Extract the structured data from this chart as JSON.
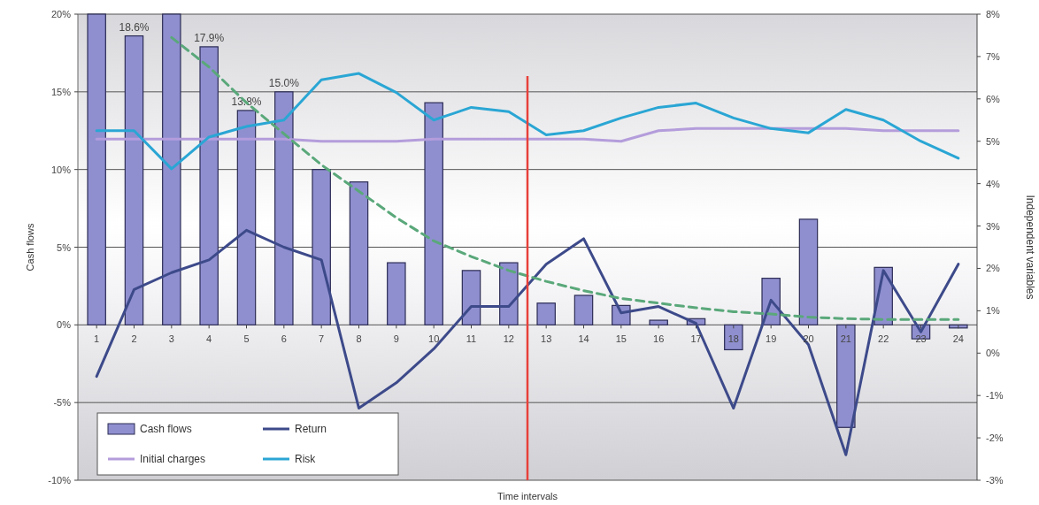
{
  "chart_data": {
    "type": "bar",
    "xlabel": "Time intervals",
    "ylabel": "Cash flows",
    "y2label": "Independent variables",
    "x": [
      1,
      2,
      3,
      4,
      5,
      6,
      7,
      8,
      9,
      10,
      11,
      12,
      13,
      14,
      15,
      16,
      17,
      18,
      19,
      20,
      21,
      22,
      23,
      24
    ],
    "xlim": [
      0.5,
      24.5
    ],
    "xticks": [
      1,
      2,
      3,
      4,
      5,
      6,
      7,
      8,
      9,
      10,
      11,
      12,
      13,
      14,
      15,
      16,
      17,
      18,
      19,
      20,
      21,
      22,
      23,
      24
    ],
    "ylim": [
      -10,
      20
    ],
    "yticks": [
      {
        "value": -10,
        "label": "-10%"
      },
      {
        "value": -5,
        "label": "-5%"
      },
      {
        "value": 0,
        "label": "0%"
      },
      {
        "value": 5,
        "label": "5%"
      },
      {
        "value": 10,
        "label": "10%"
      },
      {
        "value": 15,
        "label": "15%"
      },
      {
        "value": 20,
        "label": "20%"
      }
    ],
    "y2lim": [
      -3,
      8
    ],
    "y2ticks": [
      {
        "value": -3,
        "label": "-3%"
      },
      {
        "value": -2,
        "label": "-2%"
      },
      {
        "value": -1,
        "label": "-1%"
      },
      {
        "value": 0,
        "label": "0%"
      },
      {
        "value": 1,
        "label": "1%"
      },
      {
        "value": 2,
        "label": "2%"
      },
      {
        "value": 3,
        "label": "3%"
      },
      {
        "value": 4,
        "label": "4%"
      },
      {
        "value": 5,
        "label": "5%"
      },
      {
        "value": 6,
        "label": "6%"
      },
      {
        "value": 7,
        "label": "7%"
      },
      {
        "value": 8,
        "label": "8%"
      }
    ],
    "grid": "y",
    "legend": "bottom left",
    "series": [
      {
        "name": "Cash flows",
        "color": "#8f8fd0",
        "values": [
          20,
          18.6,
          20,
          17.9,
          13.8,
          15.0,
          10.0,
          9.2,
          4.0,
          14.3,
          3.5,
          4.0,
          1.4,
          1.9,
          1.25,
          0.3,
          0.4,
          -1.6,
          3.0,
          6.8,
          -6.6,
          3.7,
          -0.9,
          -0.2
        ],
        "value_labels": [
          null,
          "18.6%",
          null,
          "17.9%",
          "13.8%",
          "15.0%",
          null,
          null,
          null,
          null,
          null,
          null,
          null,
          null,
          null,
          null,
          null,
          null,
          null,
          null,
          null,
          null,
          null,
          null
        ]
      },
      {
        "name": "Return",
        "type": "line",
        "axis": "y2",
        "color": "#3d4a8a",
        "values": [
          -0.55,
          1.5,
          1.9,
          2.2,
          2.9,
          2.5,
          2.2,
          -1.3,
          -0.7,
          0.1,
          1.1,
          1.1,
          2.1,
          2.7,
          0.95,
          1.1,
          0.7,
          -1.3,
          1.25,
          0.2,
          -2.4,
          1.95,
          0.5,
          2.1
        ]
      },
      {
        "name": "Initial charges",
        "type": "line",
        "axis": "y2",
        "color": "#b49ddb",
        "values": [
          5.05,
          5.05,
          5.05,
          5.05,
          5.05,
          5.05,
          5.0,
          5.0,
          5.0,
          5.05,
          5.05,
          5.05,
          5.05,
          5.05,
          5.0,
          5.25,
          5.3,
          5.3,
          5.3,
          5.3,
          5.3,
          5.25,
          5.25,
          5.25
        ]
      },
      {
        "name": "Risk",
        "type": "line",
        "axis": "y2",
        "color": "#2aa6d4",
        "values": [
          5.25,
          5.25,
          4.35,
          5.1,
          5.35,
          5.5,
          6.45,
          6.6,
          6.15,
          5.5,
          5.8,
          5.7,
          5.15,
          5.25,
          5.55,
          5.8,
          5.9,
          5.55,
          5.3,
          5.2,
          5.75,
          5.5,
          5.0,
          4.6
        ]
      },
      {
        "type": "line",
        "color": "#5aa87a",
        "line_style": "dashed",
        "values": [
          null,
          null,
          18.5,
          16.6,
          14.3,
          12.3,
          10.3,
          8.6,
          6.9,
          5.4,
          4.4,
          3.5,
          2.8,
          2.2,
          1.7,
          1.4,
          1.1,
          0.85,
          0.7,
          0.5,
          0.4,
          0.35,
          0.35,
          0.35
        ]
      }
    ],
    "ref_lines": [
      {
        "axis": "x",
        "value": 12.5,
        "color": "#e8403a"
      }
    ]
  }
}
